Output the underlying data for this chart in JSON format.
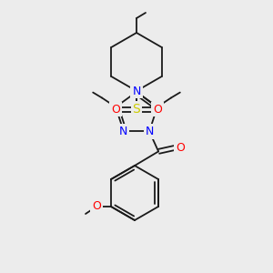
{
  "background_color": "#ececec",
  "atom_colors": {
    "N": "#0000ff",
    "O": "#ff0000",
    "S": "#cccc00",
    "C": "#000000"
  },
  "bond_color": "#1a1a1a",
  "lw": 1.3,
  "fs": 8,
  "fig_size": [
    3.0,
    3.0
  ],
  "dpi": 100
}
